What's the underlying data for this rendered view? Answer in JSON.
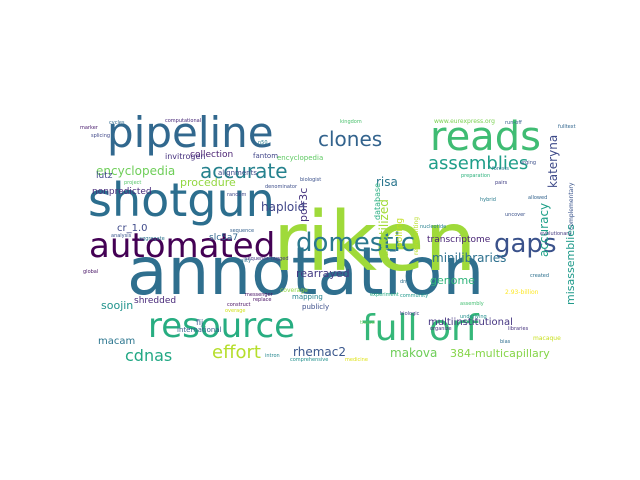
{
  "words": [
    {
      "text": "annotation",
      "color": "#2f6f8e"
    },
    {
      "text": "riken",
      "color": "#9fda3a"
    },
    {
      "text": "pipeline",
      "color": "#31688e"
    },
    {
      "text": "shotgun",
      "color": "#2c6e8e"
    },
    {
      "text": "reads",
      "color": "#3fbc73"
    },
    {
      "text": "automated",
      "color": "#440154"
    },
    {
      "text": "full orf",
      "color": "#35b779"
    },
    {
      "text": "resource",
      "color": "#27ad81"
    },
    {
      "text": "domestic",
      "color": "#2a788e"
    },
    {
      "text": "gaps",
      "color": "#3b528b"
    },
    {
      "text": "clones",
      "color": "#33638d"
    },
    {
      "text": "accurate",
      "color": "#26828e"
    },
    {
      "text": "assemblies",
      "color": "#1f9e89"
    },
    {
      "text": "effort",
      "color": "#b5de2b"
    },
    {
      "text": "cdnas",
      "color": "#22a884"
    },
    {
      "text": "encyclopedia",
      "color": "#6ece58"
    },
    {
      "text": "minilibraries",
      "color": "#2d708e"
    },
    {
      "text": "rhemac2",
      "color": "#39568c"
    },
    {
      "text": "makova",
      "color": "#6ece58"
    },
    {
      "text": "384-multicapillary",
      "color": "#86d549"
    },
    {
      "text": "accuracy",
      "color": "#1fa088"
    },
    {
      "text": "kateryna",
      "color": "#3e4a89"
    },
    {
      "text": "misassemblies",
      "color": "#1f9a8a"
    },
    {
      "text": "unutilized",
      "color": "#a2da37"
    },
    {
      "text": "polr3c",
      "color": "#46337e"
    },
    {
      "text": "risa",
      "color": "#2a768e"
    },
    {
      "text": "haploid",
      "color": "#404688"
    },
    {
      "text": "rearrayed",
      "color": "#443b84"
    },
    {
      "text": "transcriptome",
      "color": "#482475"
    },
    {
      "text": "genome",
      "color": "#31b57b"
    },
    {
      "text": "procedure",
      "color": "#93d741"
    },
    {
      "text": "shredded",
      "color": "#482979"
    },
    {
      "text": "nonpredicted",
      "color": "#472c7a"
    },
    {
      "text": "lutz",
      "color": "#3f4889"
    },
    {
      "text": "soojin",
      "color": "#20938c"
    },
    {
      "text": "macam",
      "color": "#2b758e"
    },
    {
      "text": "cr_1.0",
      "color": "#3e4989"
    },
    {
      "text": "multiinstitutional",
      "color": "#453581"
    },
    {
      "text": "collection",
      "color": "#481f70"
    },
    {
      "text": "polling",
      "color": "#c2df23"
    },
    {
      "text": "slc5a7",
      "color": "#31668e"
    },
    {
      "text": "mapping",
      "color": "#26828e"
    },
    {
      "text": "publicly",
      "color": "#3c4f8a"
    },
    {
      "text": "invitrogen",
      "color": "#46317e"
    },
    {
      "text": "alignments",
      "color": "#3e4c8a"
    },
    {
      "text": "fantom",
      "color": "#404588"
    },
    {
      "text": "database",
      "color": "#27ad81"
    },
    {
      "text": "international",
      "color": "#355f8d"
    },
    {
      "text": "fij",
      "color": "#365c8d"
    },
    {
      "text": "encyclopedia",
      "color": "#5ec962"
    },
    {
      "text": "www.eurexpress.org",
      "color": "#7ad151"
    },
    {
      "text": "computational",
      "color": "#482878"
    },
    {
      "text": "2.93-billion",
      "color": "#fde725"
    },
    {
      "text": "community",
      "color": "#1f988b"
    },
    {
      "text": "complementary",
      "color": "#3a548c"
    },
    {
      "text": "sequence-tagged",
      "color": "#453781"
    },
    {
      "text": "overage",
      "color": "#d2e21b"
    },
    {
      "text": "macaque",
      "color": "#c8e020"
    },
    {
      "text": "bias",
      "color": "#2e6e8e"
    },
    {
      "text": "run-off",
      "color": "#365d8d"
    },
    {
      "text": "n50",
      "color": "#287d8e"
    },
    {
      "text": "kingdom",
      "color": "#4ac16d"
    },
    {
      "text": "biologist",
      "color": "#3b518b"
    },
    {
      "text": "evolutionary",
      "color": "#44397f"
    },
    {
      "text": "coverage",
      "color": "#90d743"
    },
    {
      "text": "experiment",
      "color": "#25ab82"
    },
    {
      "text": "representing",
      "color": "#b8de29"
    },
    {
      "text": "messenger",
      "color": "#471063"
    },
    {
      "text": "quality",
      "color": "#2c728e"
    },
    {
      "text": "tissue",
      "color": "#65cb5e"
    },
    {
      "text": "organize",
      "color": "#472a7a"
    },
    {
      "text": "construct",
      "color": "#460b5e"
    },
    {
      "text": "libraries",
      "color": "#46337e"
    },
    {
      "text": "created",
      "color": "#2d718e"
    },
    {
      "text": "allowed",
      "color": "#33638d"
    },
    {
      "text": "forests",
      "color": "#2a778e"
    },
    {
      "text": "pairs",
      "color": "#424086"
    },
    {
      "text": "urging",
      "color": "#3c4f8a"
    },
    {
      "text": "fulltext",
      "color": "#31668e"
    },
    {
      "text": "denominator",
      "color": "#3d4e8a"
    },
    {
      "text": "nucleotide",
      "color": "#27808e"
    },
    {
      "text": "comprehensive",
      "color": "#21908d"
    },
    {
      "text": "medicine",
      "color": "#dfe318"
    },
    {
      "text": "preparation",
      "color": "#2db27d"
    },
    {
      "text": "replace",
      "color": "#471164"
    },
    {
      "text": "sequence",
      "color": "#34608d"
    },
    {
      "text": "dna",
      "color": "#2e6f8e"
    },
    {
      "text": "assembly",
      "color": "#43bf71"
    },
    {
      "text": "uncover",
      "color": "#3b528b"
    },
    {
      "text": "biologic",
      "color": "#404588"
    },
    {
      "text": "underlying",
      "color": "#218f8d"
    },
    {
      "text": "hybrid",
      "color": "#287c8e"
    },
    {
      "text": "splicing",
      "color": "#3f4788"
    },
    {
      "text": "project",
      "color": "#54c568"
    },
    {
      "text": "aggregate",
      "color": "#2c738e"
    },
    {
      "text": "cycles",
      "color": "#306a8e"
    },
    {
      "text": "marker",
      "color": "#481b6d"
    },
    {
      "text": "random",
      "color": "#3e4989"
    },
    {
      "text": "analysis",
      "color": "#39568c"
    },
    {
      "text": "global",
      "color": "#471365"
    },
    {
      "text": "intron",
      "color": "#24868e"
    }
  ]
}
